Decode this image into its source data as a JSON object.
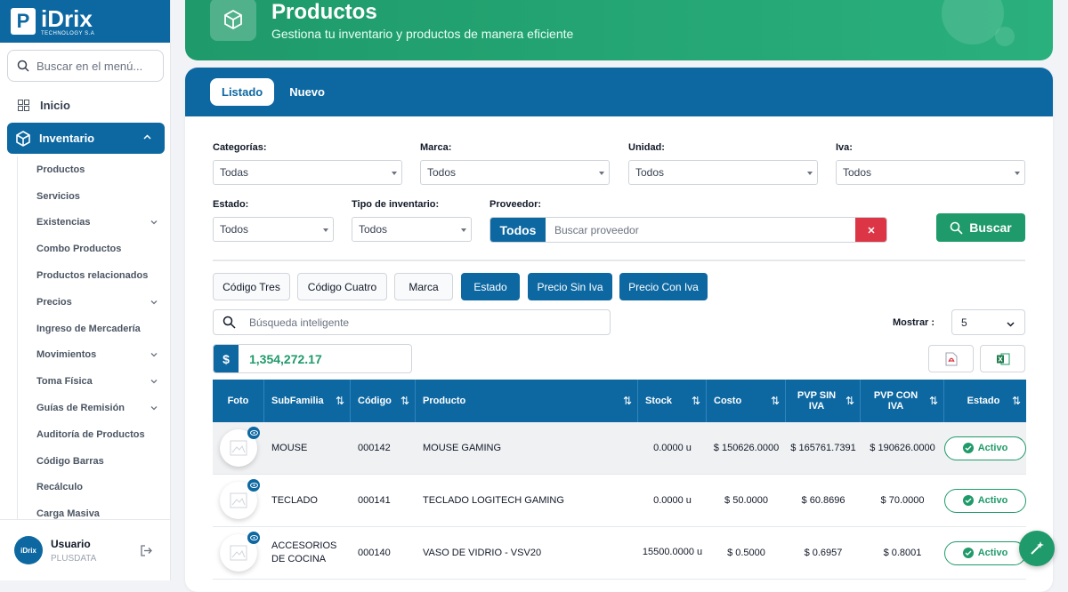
{
  "brand": {
    "name": "iDrix",
    "tagline": "TECHNOLOGY S.A",
    "letter": "P"
  },
  "sidebar": {
    "search_placeholder": "Buscar en el menú...",
    "home_label": "Inicio",
    "section_label": "Inventario",
    "items": [
      {
        "label": "Productos",
        "expandable": false
      },
      {
        "label": "Servicios",
        "expandable": false
      },
      {
        "label": "Existencias",
        "expandable": true
      },
      {
        "label": "Combo Productos",
        "expandable": false
      },
      {
        "label": "Productos relacionados",
        "expandable": false
      },
      {
        "label": "Precios",
        "expandable": true
      },
      {
        "label": "Ingreso de Mercadería",
        "expandable": false
      },
      {
        "label": "Movimientos",
        "expandable": true
      },
      {
        "label": "Toma Física",
        "expandable": true
      },
      {
        "label": "Guías de Remisión",
        "expandable": true
      },
      {
        "label": "Auditoría de Productos",
        "expandable": false
      },
      {
        "label": "Código Barras",
        "expandable": false
      },
      {
        "label": "Recálculo",
        "expandable": false
      },
      {
        "label": "Carga Masiva",
        "expandable": false
      }
    ]
  },
  "user": {
    "name": "Usuario",
    "org": "PLUSDATA",
    "avatar_text": "iDrix"
  },
  "header": {
    "title": "Productos",
    "subtitle": "Gestiona tu inventario y productos de manera eficiente"
  },
  "tabs": {
    "active": "Listado",
    "other": "Nuevo"
  },
  "filters": {
    "categorias": {
      "label": "Categorías:",
      "value": "Todas"
    },
    "marca": {
      "label": "Marca:",
      "value": "Todos"
    },
    "unidad": {
      "label": "Unidad:",
      "value": "Todos"
    },
    "iva": {
      "label": "Iva:",
      "value": "Todos"
    },
    "estado": {
      "label": "Estado:",
      "value": "Todos"
    },
    "tipo": {
      "label": "Tipo de inventario:",
      "value": "Todos"
    },
    "proveedor": {
      "label": "Proveedor:",
      "tag": "Todos",
      "placeholder": "Buscar proveedor"
    },
    "search_button": "Buscar"
  },
  "column_toggles": [
    {
      "label": "Código Tres",
      "active": false
    },
    {
      "label": "Código Cuatro",
      "active": false
    },
    {
      "label": "Marca",
      "active": false
    },
    {
      "label": "Estado",
      "active": true
    },
    {
      "label": "Precio Sin Iva",
      "active": true
    },
    {
      "label": "Precio Con Iva",
      "active": true
    }
  ],
  "smart_search": {
    "placeholder": "Búsqueda inteligente"
  },
  "page_size": {
    "label": "Mostrar :",
    "value": "5"
  },
  "total": {
    "symbol": "$",
    "value": "1,354,272.17"
  },
  "table": {
    "headers": {
      "foto": "Foto",
      "subfamilia": "SubFamilia",
      "codigo": "Código",
      "producto": "Producto",
      "stock": "Stock",
      "costo": "Costo",
      "pvp_sin_iva": "PVP SIN IVA",
      "pvp_con_iva": "PVP CON IVA",
      "estado": "Estado"
    },
    "rows": [
      {
        "subfamilia": "MOUSE",
        "codigo": "000142",
        "producto": "MOUSE GAMING",
        "stock": "0.0000 u",
        "costo": "$ 150626.0000",
        "pvp_sin_iva": "$ 165761.7391",
        "pvp_con_iva": "$ 190626.0000",
        "estado": "Activo"
      },
      {
        "subfamilia": "TECLADO",
        "codigo": "000141",
        "producto": "TECLADO LOGITECH GAMING",
        "stock": "0.0000 u",
        "costo": "$ 50.0000",
        "pvp_sin_iva": "$ 60.8696",
        "pvp_con_iva": "$ 70.0000",
        "estado": "Activo"
      },
      {
        "subfamilia": "ACCESORIOS DE COCINA",
        "codigo": "000140",
        "producto": "VASO DE VIDRIO - VSV20",
        "stock": "15500.0000 u",
        "costo": "$ 0.5000",
        "pvp_sin_iva": "$ 0.6957",
        "pvp_con_iva": "$ 0.8001",
        "estado": "Activo"
      }
    ]
  },
  "colors": {
    "primary": "#0d68a2",
    "success": "#1f9a6a",
    "danger": "#dc3545"
  }
}
